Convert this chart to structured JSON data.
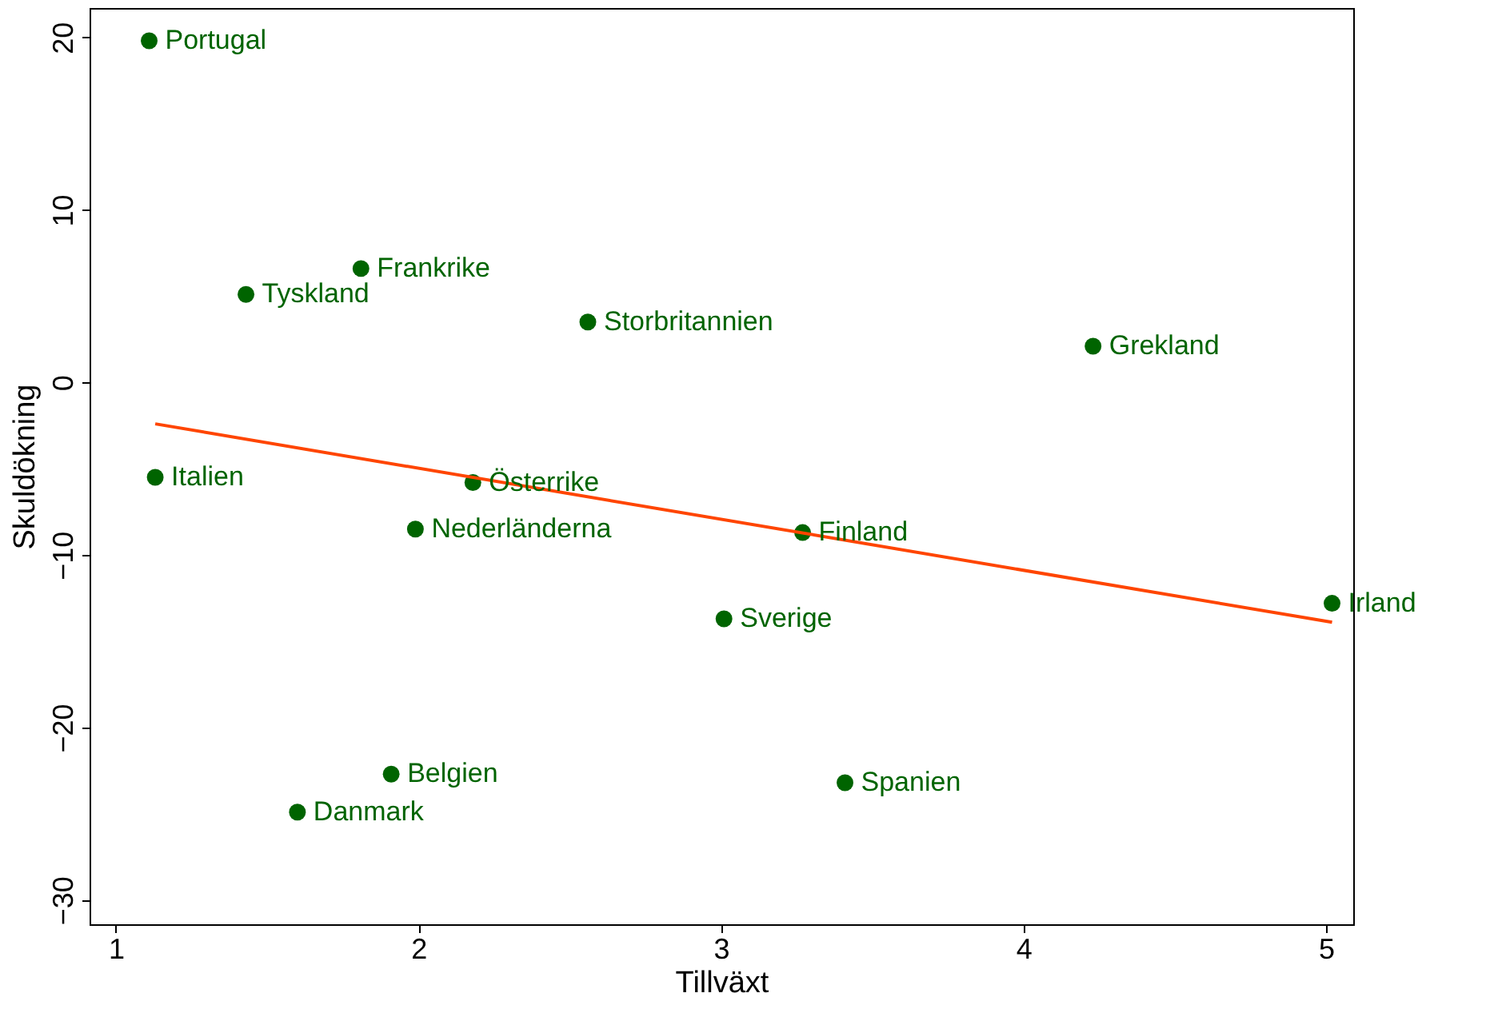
{
  "chart_data": {
    "type": "scatter",
    "xlabel": "Tillväxt",
    "ylabel": "Skuldökning",
    "xlim": [
      0.913,
      5.09
    ],
    "ylim": [
      -31.4,
      21.7
    ],
    "xticks": [
      1,
      2,
      3,
      4,
      5
    ],
    "yticks": [
      -30,
      -20,
      -10,
      0,
      10,
      20
    ],
    "grid": false,
    "series": [
      {
        "color": "#006400",
        "marker": "circle",
        "x": [
          1.11,
          1.43,
          1.81,
          2.56,
          4.23,
          1.13,
          2.18,
          1.99,
          3.27,
          5.02,
          3.01,
          1.91,
          1.6,
          3.41
        ],
        "values": [
          19.8,
          5.1,
          6.6,
          3.5,
          2.1,
          -5.5,
          -5.8,
          -8.5,
          -8.7,
          -12.8,
          -13.7,
          -22.7,
          -24.9,
          -23.2
        ]
      },
      {
        "type": "line",
        "color": "#ff4500",
        "x": [
          1.13,
          5.02
        ],
        "values": [
          -2.4,
          -13.9
        ],
        "line_style": "solid"
      }
    ],
    "annotations": [
      {
        "text": "Portugal",
        "x": 1.11,
        "y": 19.8
      },
      {
        "text": "Tyskland",
        "x": 1.43,
        "y": 5.1
      },
      {
        "text": "Frankrike",
        "x": 1.81,
        "y": 6.6
      },
      {
        "text": "Storbritannien",
        "x": 2.56,
        "y": 3.5
      },
      {
        "text": "Grekland",
        "x": 4.23,
        "y": 2.1
      },
      {
        "text": "Italien",
        "x": 1.13,
        "y": -5.5
      },
      {
        "text": "Österrike",
        "x": 2.18,
        "y": -5.8
      },
      {
        "text": "Nederländerna",
        "x": 1.99,
        "y": -8.5
      },
      {
        "text": "Finland",
        "x": 3.27,
        "y": -8.7
      },
      {
        "text": "Irland",
        "x": 5.02,
        "y": -12.8
      },
      {
        "text": "Sverige",
        "x": 3.01,
        "y": -13.7
      },
      {
        "text": "Belgien",
        "x": 1.91,
        "y": -22.7
      },
      {
        "text": "Danmark",
        "x": 1.6,
        "y": -24.9
      },
      {
        "text": "Spanien",
        "x": 3.41,
        "y": -23.2
      }
    ]
  }
}
